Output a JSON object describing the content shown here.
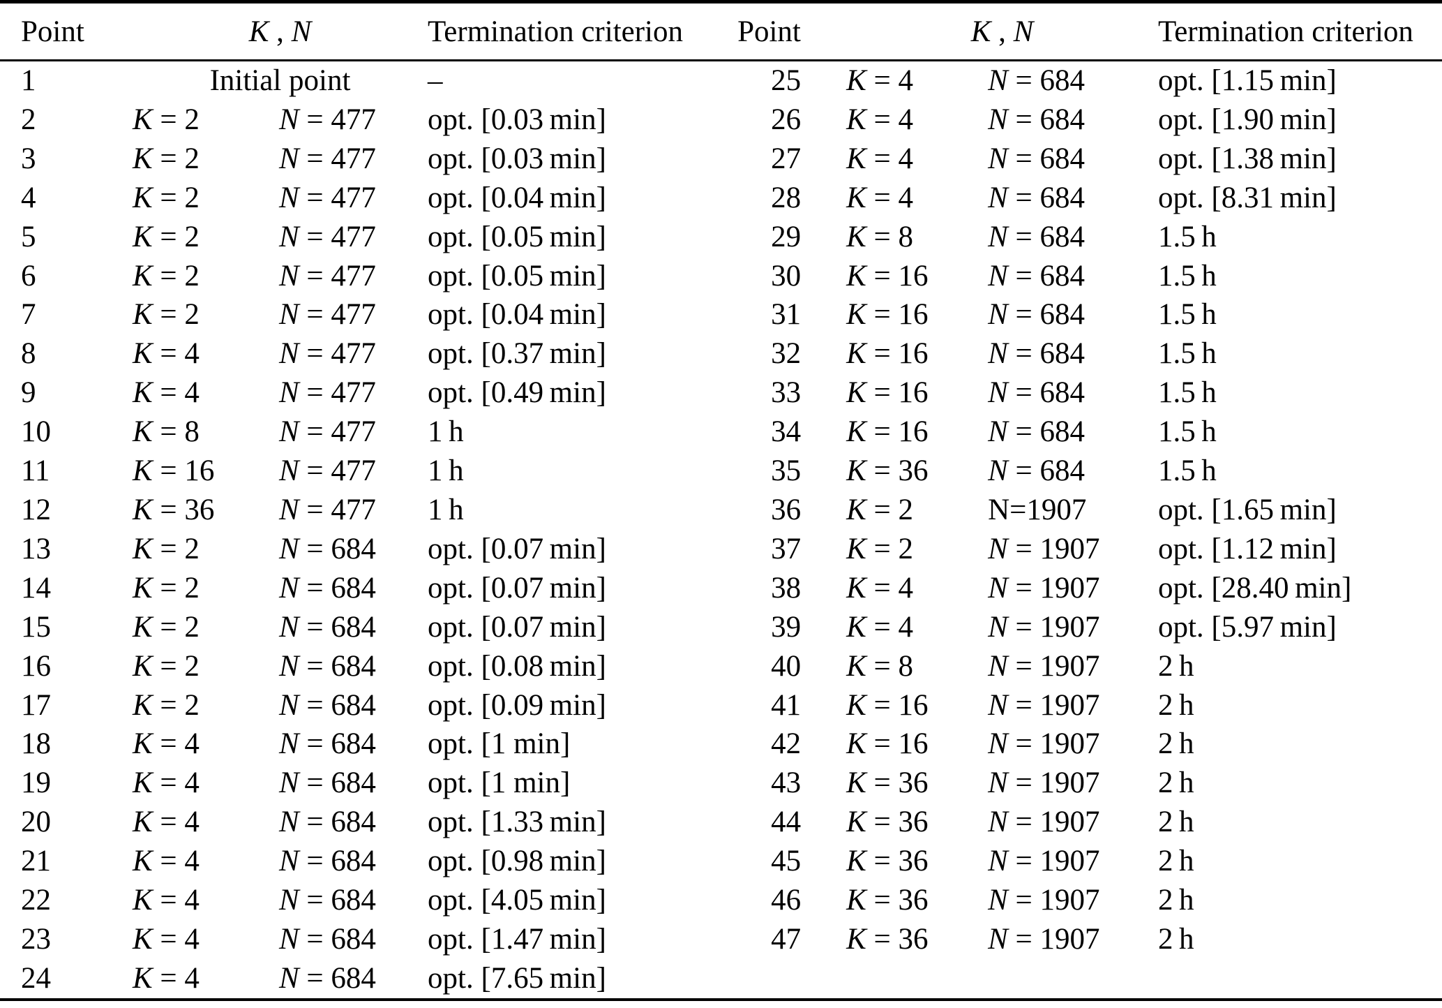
{
  "symbols": {
    "k": "K",
    "n": "N",
    "equals": " = "
  },
  "table": {
    "header": {
      "point": "Point",
      "kn_separator": " , ",
      "termination": "Termination criterion"
    },
    "left_rows": [
      {
        "point": "1",
        "kn_text": "Initial point",
        "term": "–"
      },
      {
        "point": "2",
        "k": "2",
        "n": "477",
        "term": "opt. [0.03 min]"
      },
      {
        "point": "3",
        "k": "2",
        "n": "477",
        "term": "opt. [0.03 min]"
      },
      {
        "point": "4",
        "k": "2",
        "n": "477",
        "term": "opt. [0.04 min]"
      },
      {
        "point": "5",
        "k": "2",
        "n": "477",
        "term": "opt. [0.05 min]"
      },
      {
        "point": "6",
        "k": "2",
        "n": "477",
        "term": "opt. [0.05 min]"
      },
      {
        "point": "7",
        "k": "2",
        "n": "477",
        "term": "opt. [0.04 min]"
      },
      {
        "point": "8",
        "k": "4",
        "n": "477",
        "term": "opt. [0.37 min]"
      },
      {
        "point": "9",
        "k": "4",
        "n": "477",
        "term": "opt. [0.49 min]"
      },
      {
        "point": "10",
        "k": "8",
        "n": "477",
        "term": "1 h"
      },
      {
        "point": "11",
        "k": "16",
        "n": "477",
        "term": "1 h"
      },
      {
        "point": "12",
        "k": "36",
        "n": "477",
        "term": "1 h"
      },
      {
        "point": "13",
        "k": "2",
        "n": "684",
        "term": "opt. [0.07 min]"
      },
      {
        "point": "14",
        "k": "2",
        "n": "684",
        "term": "opt. [0.07 min]"
      },
      {
        "point": "15",
        "k": "2",
        "n": "684",
        "term": "opt. [0.07 min]"
      },
      {
        "point": "16",
        "k": "2",
        "n": "684",
        "term": "opt. [0.08 min]"
      },
      {
        "point": "17",
        "k": "2",
        "n": "684",
        "term": "opt. [0.09 min]"
      },
      {
        "point": "18",
        "k": "4",
        "n": "684",
        "term": "opt. [1 min]"
      },
      {
        "point": "19",
        "k": "4",
        "n": "684",
        "term": "opt. [1 min]"
      },
      {
        "point": "20",
        "k": "4",
        "n": "684",
        "term": "opt. [1.33 min]"
      },
      {
        "point": "21",
        "k": "4",
        "n": "684",
        "term": "opt. [0.98 min]"
      },
      {
        "point": "22",
        "k": "4",
        "n": "684",
        "term": "opt. [4.05 min]"
      },
      {
        "point": "23",
        "k": "4",
        "n": "684",
        "term": "opt. [1.47 min]"
      },
      {
        "point": "24",
        "k": "4",
        "n": "684",
        "term": "opt. [7.65 min]"
      }
    ],
    "right_rows": [
      {
        "point": "25",
        "k": "4",
        "n": "684",
        "term": "opt. [1.15 min]"
      },
      {
        "point": "26",
        "k": "4",
        "n": "684",
        "term": "opt. [1.90 min]"
      },
      {
        "point": "27",
        "k": "4",
        "n": "684",
        "term": "opt. [1.38 min]"
      },
      {
        "point": "28",
        "k": "4",
        "n": "684",
        "term": "opt. [8.31 min]"
      },
      {
        "point": "29",
        "k": "8",
        "n": "684",
        "term": "1.5 h"
      },
      {
        "point": "30",
        "k": "16",
        "n": "684",
        "term": "1.5 h"
      },
      {
        "point": "31",
        "k": "16",
        "n": "684",
        "term": "1.5 h"
      },
      {
        "point": "32",
        "k": "16",
        "n": "684",
        "term": "1.5 h"
      },
      {
        "point": "33",
        "k": "16",
        "n": "684",
        "term": "1.5 h"
      },
      {
        "point": "34",
        "k": "16",
        "n": "684",
        "term": "1.5 h"
      },
      {
        "point": "35",
        "k": "36",
        "n": "684",
        "term": "1.5 h"
      },
      {
        "point": "36",
        "k": "2",
        "n_plain": "N=1907",
        "term": "opt. [1.65 min]"
      },
      {
        "point": "37",
        "k": "2",
        "n": "1907",
        "term": "opt. [1.12 min]"
      },
      {
        "point": "38",
        "k": "4",
        "n": "1907",
        "term": "opt. [28.40 min]"
      },
      {
        "point": "39",
        "k": "4",
        "n": "1907",
        "term": "opt. [5.97 min]"
      },
      {
        "point": "40",
        "k": "8",
        "n": "1907",
        "term": "2 h"
      },
      {
        "point": "41",
        "k": "16",
        "n": "1907",
        "term": "2 h"
      },
      {
        "point": "42",
        "k": "16",
        "n": "1907",
        "term": "2 h"
      },
      {
        "point": "43",
        "k": "36",
        "n": "1907",
        "term": "2 h"
      },
      {
        "point": "44",
        "k": "36",
        "n": "1907",
        "term": "2 h"
      },
      {
        "point": "45",
        "k": "36",
        "n": "1907",
        "term": "2 h"
      },
      {
        "point": "46",
        "k": "36",
        "n": "1907",
        "term": "2 h"
      },
      {
        "point": "47",
        "k": "36",
        "n": "1907",
        "term": "2 h"
      }
    ]
  }
}
